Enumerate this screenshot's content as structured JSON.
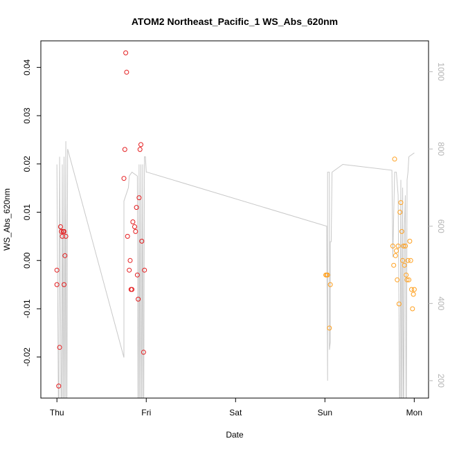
{
  "chart_data": {
    "type": "scatter",
    "title": "ATOM2 Northeast_Pacific_1 WS_Abs_620nm",
    "xlabel": "Date",
    "ylabel": "WS_Abs_620nm",
    "x_ticks": [
      {
        "value": 0,
        "label": "Thu"
      },
      {
        "value": 1,
        "label": "Fri"
      },
      {
        "value": 2,
        "label": "Sat"
      },
      {
        "value": 3,
        "label": "Sun"
      },
      {
        "value": 4,
        "label": "Mon"
      }
    ],
    "xlim": [
      -0.18,
      4.16
    ],
    "ylim": [
      -0.0285,
      0.0455
    ],
    "y_ticks": [
      -0.02,
      -0.01,
      0.0,
      0.01,
      0.02,
      0.03,
      0.04
    ],
    "y_tick_labels": [
      "-0.02",
      "-0.01",
      "0.00",
      "0.01",
      "0.02",
      "0.03",
      "0.04"
    ],
    "y2_ticks": [
      200,
      400,
      600,
      800,
      1000
    ],
    "y2_tick_labels": [
      "200",
      "400",
      "600",
      "800",
      "1000"
    ],
    "y2lim": [
      1080,
      155
    ],
    "grid": false,
    "series": [
      {
        "color": "#e41a1c",
        "points": [
          [
            0.0,
            -0.002
          ],
          [
            0.0,
            -0.005
          ],
          [
            0.02,
            -0.026
          ],
          [
            0.03,
            -0.018
          ],
          [
            0.04,
            0.007
          ],
          [
            0.05,
            0.006
          ],
          [
            0.06,
            0.005
          ],
          [
            0.07,
            0.006
          ],
          [
            0.08,
            0.006
          ],
          [
            0.08,
            -0.005
          ],
          [
            0.09,
            0.001
          ],
          [
            0.1,
            0.005
          ],
          [
            0.75,
            0.017
          ],
          [
            0.76,
            0.023
          ],
          [
            0.77,
            0.043
          ],
          [
            0.78,
            0.039
          ],
          [
            0.79,
            0.005
          ],
          [
            0.81,
            -0.002
          ],
          [
            0.82,
            0.0
          ],
          [
            0.83,
            -0.006
          ],
          [
            0.84,
            -0.006
          ],
          [
            0.85,
            0.008
          ],
          [
            0.87,
            0.007
          ],
          [
            0.88,
            0.006
          ],
          [
            0.89,
            0.011
          ],
          [
            0.9,
            -0.003
          ],
          [
            0.91,
            -0.008
          ],
          [
            0.92,
            0.013
          ],
          [
            0.93,
            0.023
          ],
          [
            0.94,
            0.024
          ],
          [
            0.95,
            0.004
          ],
          [
            0.97,
            -0.019
          ],
          [
            0.98,
            -0.002
          ]
        ]
      },
      {
        "color": "#ff9f1c",
        "points": [
          [
            3.01,
            -0.003
          ],
          [
            3.02,
            -0.003
          ],
          [
            3.03,
            -0.003
          ],
          [
            3.05,
            -0.014
          ],
          [
            3.06,
            -0.005
          ],
          [
            3.76,
            0.003
          ],
          [
            3.77,
            -0.001
          ],
          [
            3.78,
            0.021
          ],
          [
            3.79,
            0.001
          ],
          [
            3.8,
            0.002
          ],
          [
            3.81,
            -0.004
          ],
          [
            3.82,
            0.003
          ],
          [
            3.83,
            -0.009
          ],
          [
            3.84,
            0.01
          ],
          [
            3.85,
            0.012
          ],
          [
            3.86,
            0.006
          ],
          [
            3.87,
            0.0
          ],
          [
            3.88,
            0.003
          ],
          [
            3.89,
            -0.001
          ],
          [
            3.9,
            0.003
          ],
          [
            3.91,
            -0.003
          ],
          [
            3.92,
            -0.004
          ],
          [
            3.93,
            0.0
          ],
          [
            3.94,
            -0.004
          ],
          [
            3.95,
            0.004
          ],
          [
            3.96,
            0.0
          ],
          [
            3.97,
            -0.006
          ],
          [
            3.98,
            -0.01
          ],
          [
            3.99,
            -0.007
          ],
          [
            4.0,
            -0.006
          ]
        ]
      }
    ],
    "secondary_line": {
      "color": "#c8c8c8",
      "points": [
        [
          0.0,
          760
        ],
        [
          0.02,
          10
        ],
        [
          0.03,
          780
        ],
        [
          0.05,
          10
        ],
        [
          0.06,
          760
        ],
        [
          0.07,
          10
        ],
        [
          0.08,
          780
        ],
        [
          0.09,
          10
        ],
        [
          0.1,
          820
        ],
        [
          0.11,
          10
        ],
        [
          0.12,
          800
        ],
        [
          0.75,
          260
        ],
        [
          0.75,
          665
        ],
        [
          0.8,
          700
        ],
        [
          0.81,
          730
        ],
        [
          0.84,
          740
        ],
        [
          0.9,
          730
        ],
        [
          0.91,
          10
        ],
        [
          0.92,
          760
        ],
        [
          0.93,
          10
        ],
        [
          0.94,
          760
        ],
        [
          0.95,
          10
        ],
        [
          0.96,
          760
        ],
        [
          0.97,
          10
        ],
        [
          0.98,
          780
        ],
        [
          0.99,
          780
        ],
        [
          1.0,
          740
        ],
        [
          1.01,
          740
        ],
        [
          3.02,
          600
        ],
        [
          3.03,
          200
        ],
        [
          3.03,
          740
        ],
        [
          3.05,
          740
        ],
        [
          3.05,
          280
        ],
        [
          3.06,
          300
        ],
        [
          3.06,
          560
        ],
        [
          3.07,
          560
        ],
        [
          3.08,
          740
        ],
        [
          3.2,
          760
        ],
        [
          3.75,
          745
        ],
        [
          3.76,
          520
        ],
        [
          3.78,
          740
        ],
        [
          3.8,
          740
        ],
        [
          3.82,
          680
        ],
        [
          3.84,
          10
        ],
        [
          3.85,
          720
        ],
        [
          3.86,
          10
        ],
        [
          3.87,
          700
        ],
        [
          3.88,
          10
        ],
        [
          3.89,
          600
        ],
        [
          3.9,
          680
        ],
        [
          3.91,
          10
        ],
        [
          3.92,
          720
        ],
        [
          3.93,
          740
        ],
        [
          3.94,
          780
        ],
        [
          4.0,
          790
        ]
      ]
    }
  }
}
